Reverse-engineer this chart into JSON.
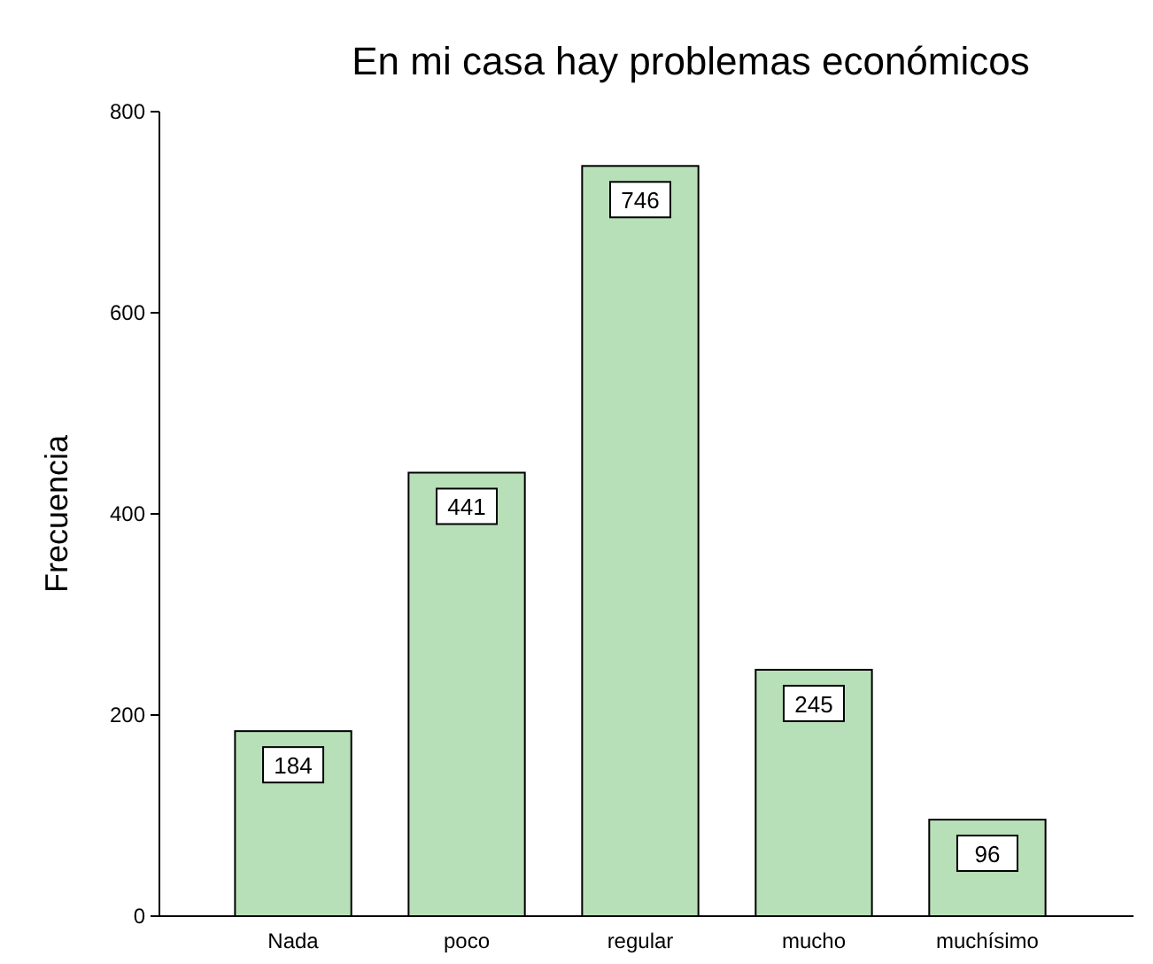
{
  "chart_data": {
    "type": "bar",
    "title": "En mi casa hay problemas económicos",
    "ylabel": "Frecuencia",
    "categories": [
      "Nada",
      "poco",
      "regular",
      "mucho",
      "muchísimo"
    ],
    "values": [
      184,
      441,
      746,
      245,
      96
    ],
    "color": "#b8e0b8",
    "ylim": [
      0,
      800
    ],
    "yticks": [
      0,
      200,
      400,
      600,
      800
    ],
    "data_labels": true
  }
}
